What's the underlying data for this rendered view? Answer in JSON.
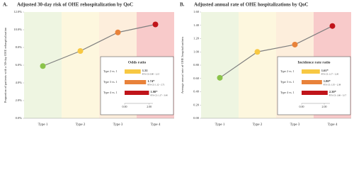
{
  "chart_data": [
    {
      "type": "line",
      "label": "A.",
      "title": "Adjusted 30-day risk of OHE rehospitalization by QoC",
      "ylabel": "Proportion of patients with a 30-day OHE rehospitalization",
      "categories": [
        "Type 1",
        "Type 2",
        "Type 3",
        "Type 4"
      ],
      "band_colors": [
        "#eef5e1",
        "#fdf7de",
        "#fdeedc",
        "#f8caca"
      ],
      "series": [
        {
          "color": "#7f7f7f",
          "point_colors": [
            "#8bc34a",
            "#f7c843",
            "#e8823a",
            "#c0141a"
          ],
          "values": [
            5.9,
            7.6,
            9.7,
            10.6
          ]
        }
      ],
      "ylim": [
        0,
        12
      ],
      "yticks": [
        {
          "value": 0,
          "label": "0.0%"
        },
        {
          "value": 2,
          "label": "2.0%"
        },
        {
          "value": 4,
          "label": "4.0%"
        },
        {
          "value": 6,
          "label": "6.0%"
        },
        {
          "value": 8,
          "label": "8.0%"
        },
        {
          "value": 10,
          "label": "10.0%"
        },
        {
          "value": 12,
          "label": "12.0%"
        }
      ],
      "inset": {
        "type": "bar",
        "title": "Odds ratio",
        "categories": [
          "Type 2 vs. 1",
          "Type 3 vs. 1",
          "Type 4 vs. 1"
        ],
        "values": [
          1.31,
          1.74,
          1.98
        ],
        "value_labels": [
          "1.31",
          "1.74*",
          "1.98*"
        ],
        "ci_labels": [
          "95% CI: 0.80 – 2.15",
          "95% CI: 1.12 – 2.71",
          "95% CI: 1.17 – 3.40"
        ],
        "colors": [
          "#f7c843",
          "#e8823a",
          "#c0141a"
        ],
        "xlim": [
          0,
          2.3
        ],
        "xticks": [
          {
            "value": 0,
            "label": "0.00"
          },
          {
            "value": 2,
            "label": "2.00"
          }
        ]
      }
    },
    {
      "type": "line",
      "label": "B.",
      "title": "Adjusted annual rate of OHE hospitalizations by QoC",
      "ylabel": "Average annual rate of OHE hospitalizations",
      "categories": [
        "Type 1",
        "Type 2",
        "Type 3",
        "Type 4"
      ],
      "band_colors": [
        "#eef5e1",
        "#fdf7de",
        "#fdeedc",
        "#f8caca"
      ],
      "series": [
        {
          "color": "#7f7f7f",
          "point_colors": [
            "#8bc34a",
            "#f7c843",
            "#e8823a",
            "#c0141a"
          ],
          "values": [
            0.61,
            1.0,
            1.11,
            1.39
          ]
        }
      ],
      "ylim": [
        0,
        1.6
      ],
      "yticks": [
        {
          "value": 0,
          "label": "0.00"
        },
        {
          "value": 0.2,
          "label": "0.20"
        },
        {
          "value": 0.4,
          "label": "0.40"
        },
        {
          "value": 0.6,
          "label": "0.60"
        },
        {
          "value": 0.8,
          "label": "0.80"
        },
        {
          "value": 1.0,
          "label": "1.00"
        },
        {
          "value": 1.2,
          "label": "1.20"
        },
        {
          "value": 1.4,
          "label": "1.40"
        },
        {
          "value": 1.6,
          "label": "1.60"
        }
      ],
      "inset": {
        "type": "bar",
        "title": "Incidence rate ratio",
        "categories": [
          "Type 2 vs. 1",
          "Type 3 vs. 1",
          "Type 4 vs. 1"
        ],
        "values": [
          1.61,
          1.8,
          2.3
        ],
        "value_labels": [
          "1.61*",
          "1.80*",
          "2.30*"
        ],
        "ci_labels": [
          "95% CI: 1.17 – 2.20",
          "95% CI: 1.35 – 2.38",
          "95% CI: 1.66 – 3.17"
        ],
        "colors": [
          "#f7c843",
          "#e8823a",
          "#c0141a"
        ],
        "xlim": [
          0,
          2.5
        ],
        "xticks": [
          {
            "value": 0,
            "label": "0.00"
          },
          {
            "value": 2,
            "label": "2.00"
          }
        ]
      }
    }
  ]
}
